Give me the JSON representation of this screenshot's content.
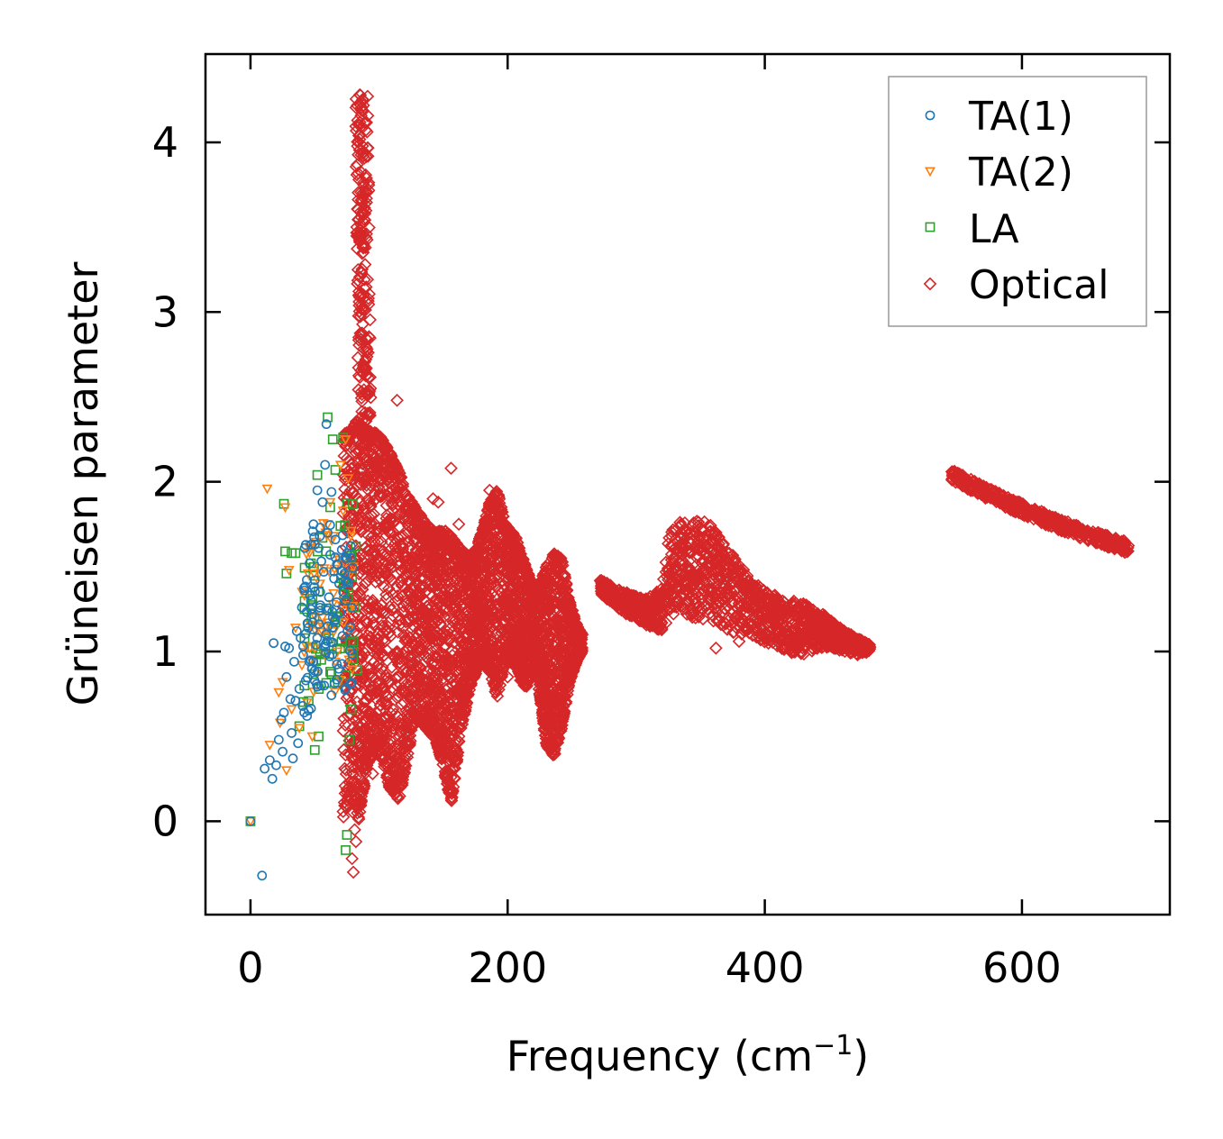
{
  "chart_data": {
    "type": "scatter",
    "xlabel": "Frequency (cm",
    "xlabel_sup": "−1",
    "xlabel_end": ")",
    "ylabel": "Grüneisen parameter",
    "xlim": [
      -35,
      715
    ],
    "ylim": [
      -0.55,
      4.52
    ],
    "xticks": [
      0,
      200,
      400,
      600
    ],
    "yticks": [
      0,
      1,
      2,
      3,
      4
    ],
    "grid": false,
    "legend_position": "top-right",
    "series": [
      {
        "name": "TA(1)",
        "marker": "circle",
        "color": "#1f77b4"
      },
      {
        "name": "TA(2)",
        "marker": "triangle-down",
        "color": "#ff7f0e"
      },
      {
        "name": "LA",
        "marker": "square",
        "color": "#2ca02c"
      },
      {
        "name": "Optical",
        "marker": "diamond",
        "color": "#d62728"
      }
    ],
    "points": {
      "TA(1)": [
        [
          0,
          0
        ],
        [
          9,
          -0.32
        ],
        [
          11,
          0.31
        ],
        [
          15,
          0.36
        ],
        [
          17,
          0.25
        ],
        [
          18,
          1.05
        ],
        [
          20,
          0.33
        ],
        [
          22,
          0.48
        ],
        [
          24,
          0.6
        ],
        [
          25,
          0.41
        ],
        [
          26,
          0.64
        ],
        [
          27,
          1.03
        ],
        [
          28,
          0.85
        ],
        [
          30,
          1.02
        ],
        [
          31,
          0.72
        ],
        [
          32,
          0.52
        ],
        [
          33,
          0.37
        ],
        [
          34,
          0.94
        ],
        [
          35,
          0.71
        ],
        [
          36,
          1.12
        ],
        [
          37,
          0.46
        ],
        [
          38,
          0.78
        ],
        [
          39,
          1.08
        ],
        [
          40,
          1.26
        ],
        [
          41,
          0.98
        ],
        [
          42,
          1.36
        ],
        [
          43,
          0.83
        ],
        [
          44,
          0.62
        ],
        [
          45,
          1.14
        ],
        [
          46,
          1.52
        ],
        [
          47,
          1.3
        ],
        [
          48,
          0.9
        ],
        [
          49,
          1.75
        ],
        [
          50,
          1.42
        ],
        [
          51,
          1.04
        ],
        [
          52,
          1.95
        ],
        [
          53,
          1.61
        ],
        [
          54,
          1.24
        ],
        [
          55,
          0.8
        ],
        [
          56,
          1.88
        ],
        [
          57,
          1.47
        ],
        [
          58,
          2.1
        ],
        [
          59,
          2.34
        ],
        [
          60,
          1.7
        ],
        [
          61,
          1.32
        ],
        [
          62,
          1.57
        ],
        [
          63,
          1.94
        ],
        [
          64,
          1.2
        ],
        [
          65,
          1.43
        ],
        [
          66,
          1.66
        ],
        [
          67,
          1.29
        ],
        [
          68,
          1.51
        ],
        [
          69,
          1.4
        ],
        [
          70,
          1.23
        ],
        [
          71,
          1.6
        ],
        [
          72,
          1.35
        ],
        [
          73,
          1.46
        ],
        [
          74,
          1.3
        ],
        [
          75,
          1.55
        ]
      ],
      "TA(2)": [
        [
          0,
          0
        ],
        [
          13,
          1.96
        ],
        [
          15,
          0.45
        ],
        [
          22,
          0.76
        ],
        [
          23,
          0.58
        ],
        [
          25,
          0.82
        ],
        [
          27,
          1.85
        ],
        [
          28,
          0.3
        ],
        [
          30,
          1.48
        ],
        [
          32,
          0.66
        ],
        [
          35,
          1.14
        ],
        [
          38,
          0.55
        ],
        [
          40,
          0.92
        ],
        [
          42,
          1.33
        ],
        [
          44,
          0.7
        ],
        [
          46,
          1.61
        ],
        [
          48,
          0.5
        ],
        [
          50,
          1.02
        ],
        [
          52,
          0.87
        ],
        [
          54,
          1.4
        ],
        [
          56,
          1.2
        ],
        [
          58,
          0.98
        ],
        [
          60,
          1.75
        ],
        [
          62,
          1.88
        ],
        [
          64,
          1.28
        ],
        [
          66,
          0.94
        ],
        [
          68,
          1.55
        ],
        [
          70,
          2.1
        ],
        [
          72,
          1.83
        ],
        [
          74,
          2.25
        ],
        [
          76,
          2.02
        ],
        [
          78,
          1.68
        ],
        [
          80,
          1.5
        ]
      ],
      "LA": [
        [
          0,
          0
        ],
        [
          26,
          1.87
        ],
        [
          27,
          1.59
        ],
        [
          28,
          1.46
        ],
        [
          32,
          1.58
        ],
        [
          35,
          1.58
        ],
        [
          38,
          0.56
        ],
        [
          42,
          1.25
        ],
        [
          47,
          1.52
        ],
        [
          50,
          0.42
        ],
        [
          52,
          2.04
        ],
        [
          53,
          0.5
        ],
        [
          56,
          1.67
        ],
        [
          58,
          0.99
        ],
        [
          60,
          2.38
        ],
        [
          62,
          1.85
        ],
        [
          64,
          2.25
        ],
        [
          66,
          2.07
        ],
        [
          68,
          0.82
        ],
        [
          70,
          1.74
        ],
        [
          72,
          2.26
        ],
        [
          74,
          -0.17
        ],
        [
          75,
          -0.08
        ],
        [
          76,
          1.31
        ],
        [
          77,
          0.48
        ],
        [
          78,
          0.66
        ],
        [
          79,
          1.44
        ],
        [
          80,
          1.06
        ],
        [
          81,
          1.26
        ],
        [
          82,
          1.62
        ],
        [
          83,
          0.89
        ]
      ]
    }
  }
}
